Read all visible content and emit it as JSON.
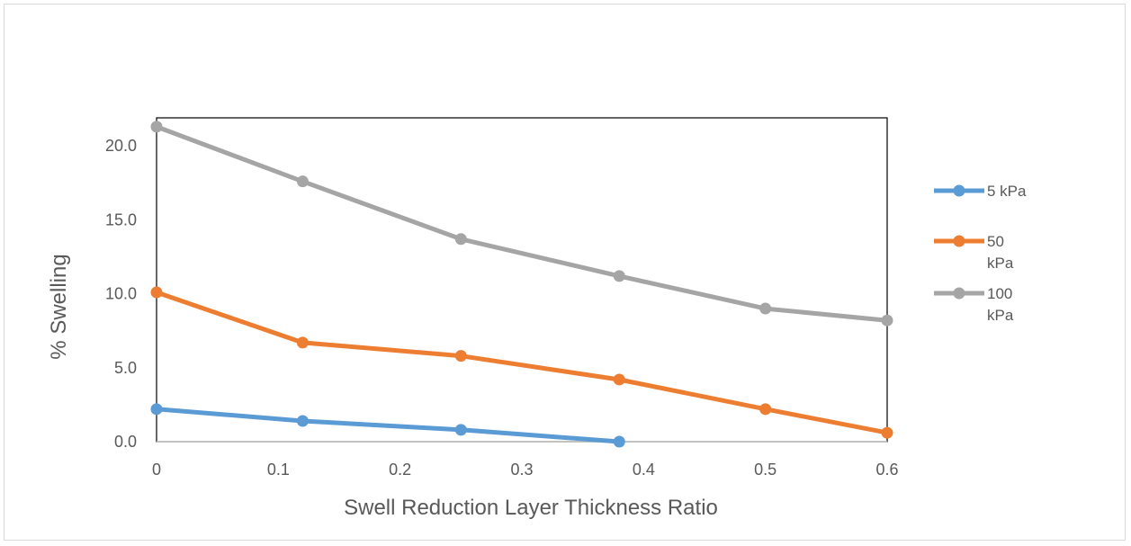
{
  "chart_data": {
    "type": "line",
    "xlabel": "Swell Reduction Layer Thickness Ratio",
    "ylabel": "% Swelling",
    "x_ticks": [
      "0",
      "0.1",
      "0.2",
      "0.3",
      "0.4",
      "0.5",
      "0.6"
    ],
    "y_ticks": [
      "0.0",
      "5.0",
      "10.0",
      "15.0",
      "20.0"
    ],
    "xlim": [
      0,
      0.6
    ],
    "ylim": [
      0,
      21.9
    ],
    "grid": false,
    "legend_position": "right",
    "series": [
      {
        "name": "5 kPa",
        "color": "#5b9bd5",
        "x": [
          0,
          0.12,
          0.25,
          0.38
        ],
        "y": [
          2.2,
          1.4,
          0.8,
          0.0
        ]
      },
      {
        "name": "50 kPa",
        "color": "#ed7d31",
        "x": [
          0,
          0.12,
          0.25,
          0.38,
          0.5,
          0.6
        ],
        "y": [
          10.1,
          6.7,
          5.8,
          4.2,
          2.2,
          0.6
        ]
      },
      {
        "name": "100 kPa",
        "color": "#a5a5a5",
        "x": [
          0,
          0.12,
          0.25,
          0.38,
          0.5,
          0.6
        ],
        "y": [
          21.3,
          17.6,
          13.7,
          11.2,
          9.0,
          8.2
        ]
      }
    ],
    "legend": [
      {
        "lines": [
          "5 kPa"
        ]
      },
      {
        "lines": [
          "50",
          "kPa"
        ]
      },
      {
        "lines": [
          "100",
          "kPa"
        ]
      }
    ]
  }
}
